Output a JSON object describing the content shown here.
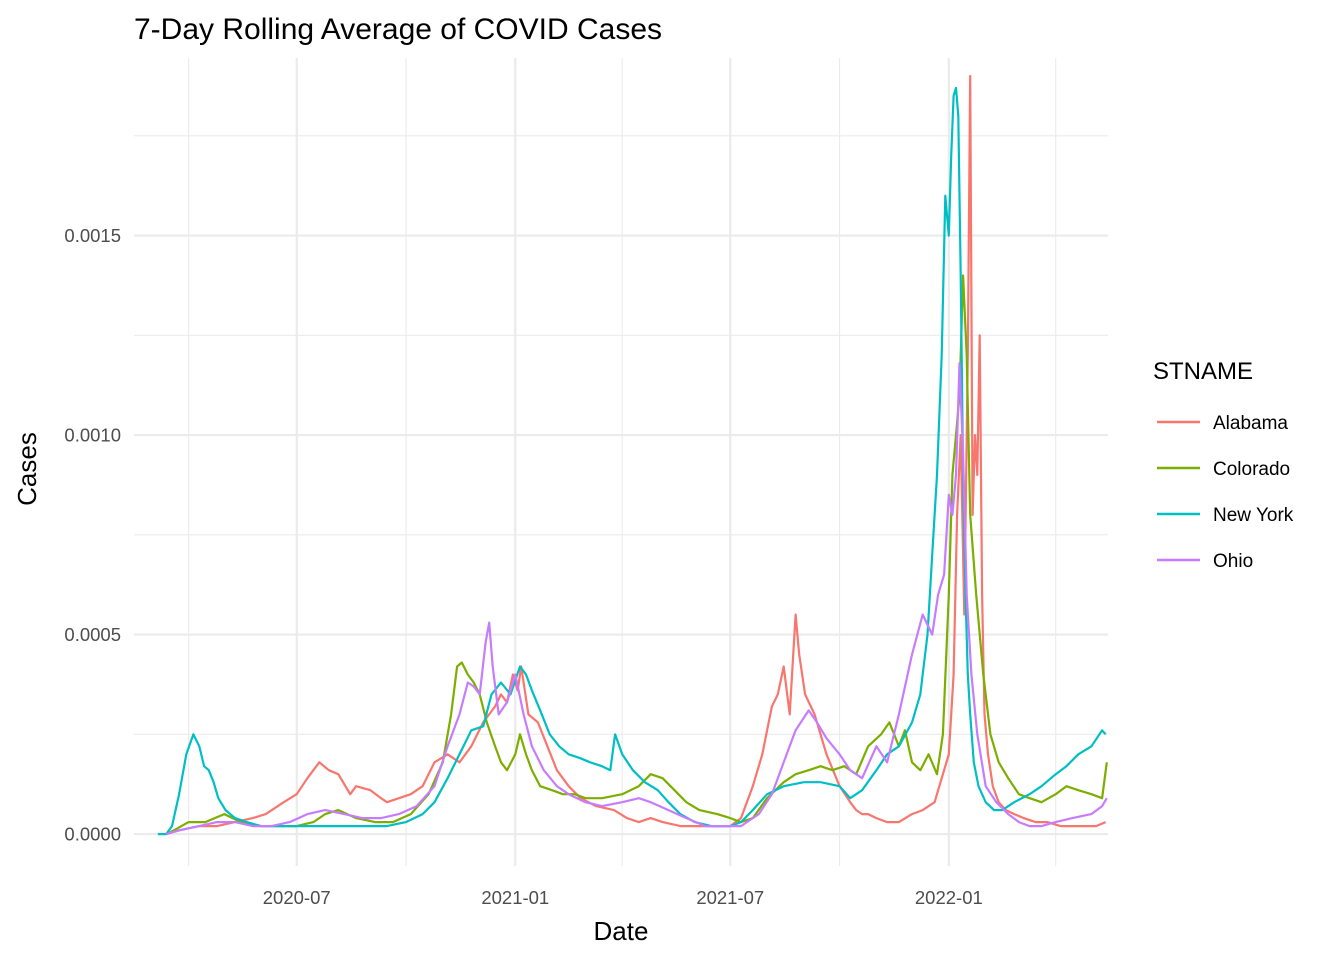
{
  "chart_data": {
    "type": "line",
    "title": "7-Day Rolling Average of COVID Cases",
    "xlabel": "Date",
    "ylabel": "Cases",
    "x_axis": {
      "type": "date",
      "range": [
        "2020-02-15",
        "2022-05-15"
      ],
      "ticks": [
        "2020-07-01",
        "2021-01-01",
        "2021-07-01",
        "2022-01-01"
      ],
      "tick_labels": [
        "2020-07",
        "2021-01",
        "2021-07",
        "2022-01"
      ],
      "minor_ticks": [
        "2020-04-01",
        "2020-10-01",
        "2021-04-01",
        "2021-10-01",
        "2022-04-01"
      ]
    },
    "y_axis": {
      "range": [
        -8e-05,
        0.001945
      ],
      "ticks": [
        0,
        0.0005,
        0.001,
        0.0015
      ],
      "tick_labels": [
        "0.0000",
        "0.0005",
        "0.0010",
        "0.0015"
      ],
      "minor_ticks": [
        0.00025,
        0.00075,
        0.00125,
        0.00175
      ]
    },
    "grid": true,
    "legend": {
      "title": "STNAME",
      "position": "right"
    },
    "series": [
      {
        "name": "Alabama",
        "color": "#F8766D",
        "x": [
          "2020-03-13",
          "2020-03-25",
          "2020-04-10",
          "2020-04-25",
          "2020-05-10",
          "2020-05-25",
          "2020-06-05",
          "2020-06-20",
          "2020-07-01",
          "2020-07-10",
          "2020-07-20",
          "2020-07-28",
          "2020-08-05",
          "2020-08-15",
          "2020-08-20",
          "2020-09-01",
          "2020-09-10",
          "2020-09-15",
          "2020-09-25",
          "2020-10-05",
          "2020-10-15",
          "2020-10-25",
          "2020-11-05",
          "2020-11-15",
          "2020-11-25",
          "2020-12-05",
          "2020-12-15",
          "2020-12-20",
          "2020-12-25",
          "2020-12-30",
          "2021-01-03",
          "2021-01-06",
          "2021-01-12",
          "2021-01-20",
          "2021-01-28",
          "2021-02-05",
          "2021-02-15",
          "2021-02-25",
          "2021-03-10",
          "2021-03-25",
          "2021-04-05",
          "2021-04-15",
          "2021-04-25",
          "2021-05-05",
          "2021-05-20",
          "2021-06-05",
          "2021-06-20",
          "2021-07-01",
          "2021-07-10",
          "2021-07-20",
          "2021-07-28",
          "2021-08-05",
          "2021-08-10",
          "2021-08-15",
          "2021-08-20",
          "2021-08-25",
          "2021-08-28",
          "2021-09-02",
          "2021-09-10",
          "2021-09-20",
          "2021-10-01",
          "2021-10-10",
          "2021-10-15",
          "2021-10-20",
          "2021-10-25",
          "2021-11-01",
          "2021-11-10",
          "2021-11-20",
          "2021-12-01",
          "2021-12-10",
          "2021-12-20",
          "2021-12-27",
          "2022-01-01",
          "2022-01-05",
          "2022-01-08",
          "2022-01-11",
          "2022-01-14",
          "2022-01-17",
          "2022-01-19",
          "2022-01-21",
          "2022-01-23",
          "2022-01-25",
          "2022-01-27",
          "2022-01-29",
          "2022-01-31",
          "2022-02-03",
          "2022-02-07",
          "2022-02-12",
          "2022-02-18",
          "2022-02-25",
          "2022-03-05",
          "2022-03-15",
          "2022-03-25",
          "2022-04-05",
          "2022-04-20",
          "2022-05-05",
          "2022-05-13"
        ],
        "y": [
          0,
          1e-05,
          2e-05,
          2e-05,
          3e-05,
          4e-05,
          5e-05,
          8e-05,
          0.0001,
          0.00014,
          0.00018,
          0.00016,
          0.00015,
          0.0001,
          0.00012,
          0.00011,
          9e-05,
          8e-05,
          9e-05,
          0.0001,
          0.00012,
          0.00018,
          0.0002,
          0.00018,
          0.00022,
          0.00028,
          0.00032,
          0.00035,
          0.00033,
          0.0004,
          0.00036,
          0.00042,
          0.0003,
          0.00028,
          0.00022,
          0.00016,
          0.00012,
          9e-05,
          7e-05,
          6e-05,
          4e-05,
          3e-05,
          4e-05,
          3e-05,
          2e-05,
          2e-05,
          2e-05,
          2e-05,
          4e-05,
          0.00012,
          0.0002,
          0.00032,
          0.00035,
          0.00042,
          0.0003,
          0.00055,
          0.00045,
          0.00035,
          0.0003,
          0.0002,
          0.00012,
          8e-05,
          6e-05,
          5e-05,
          5e-05,
          4e-05,
          3e-05,
          3e-05,
          5e-05,
          6e-05,
          8e-05,
          0.00015,
          0.0002,
          0.0004,
          0.0008,
          0.001,
          0.00055,
          0.0012,
          0.0019,
          0.0008,
          0.001,
          0.0009,
          0.00125,
          0.0006,
          0.0003,
          0.0002,
          0.00012,
          8e-05,
          6e-05,
          5e-05,
          4e-05,
          3e-05,
          3e-05,
          2e-05,
          2e-05,
          2e-05,
          3e-05
        ]
      },
      {
        "name": "Colorado",
        "color": "#7CAE00",
        "x": [
          "2020-03-13",
          "2020-03-20",
          "2020-04-01",
          "2020-04-15",
          "2020-05-01",
          "2020-05-15",
          "2020-06-01",
          "2020-06-15",
          "2020-07-01",
          "2020-07-15",
          "2020-07-25",
          "2020-08-05",
          "2020-08-20",
          "2020-09-05",
          "2020-09-20",
          "2020-10-05",
          "2020-10-20",
          "2020-11-01",
          "2020-11-08",
          "2020-11-13",
          "2020-11-17",
          "2020-11-22",
          "2020-11-27",
          "2020-12-02",
          "2020-12-08",
          "2020-12-15",
          "2020-12-20",
          "2020-12-25",
          "2021-01-01",
          "2021-01-05",
          "2021-01-10",
          "2021-01-15",
          "2021-01-22",
          "2021-02-01",
          "2021-02-10",
          "2021-02-20",
          "2021-03-01",
          "2021-03-15",
          "2021-04-01",
          "2021-04-15",
          "2021-04-25",
          "2021-05-05",
          "2021-05-15",
          "2021-05-25",
          "2021-06-05",
          "2021-06-20",
          "2021-07-01",
          "2021-07-10",
          "2021-07-20",
          "2021-08-01",
          "2021-08-15",
          "2021-08-25",
          "2021-09-05",
          "2021-09-15",
          "2021-09-25",
          "2021-10-05",
          "2021-10-15",
          "2021-10-25",
          "2021-11-05",
          "2021-11-12",
          "2021-11-20",
          "2021-11-25",
          "2021-12-01",
          "2021-12-08",
          "2021-12-15",
          "2021-12-22",
          "2021-12-27",
          "2022-01-01",
          "2022-01-04",
          "2022-01-07",
          "2022-01-10",
          "2022-01-13",
          "2022-01-16",
          "2022-01-19",
          "2022-01-24",
          "2022-01-30",
          "2022-02-05",
          "2022-02-12",
          "2022-02-20",
          "2022-03-01",
          "2022-03-10",
          "2022-03-20",
          "2022-04-01",
          "2022-04-10",
          "2022-04-20",
          "2022-05-01",
          "2022-05-10",
          "2022-05-14"
        ],
        "y": [
          0,
          1e-05,
          3e-05,
          3e-05,
          5e-05,
          3e-05,
          2e-05,
          2e-05,
          2e-05,
          3e-05,
          5e-05,
          6e-05,
          4e-05,
          3e-05,
          3e-05,
          5e-05,
          0.0001,
          0.00018,
          0.0003,
          0.00042,
          0.00043,
          0.0004,
          0.00038,
          0.00035,
          0.00028,
          0.00022,
          0.00018,
          0.00016,
          0.0002,
          0.00025,
          0.0002,
          0.00016,
          0.00012,
          0.00011,
          0.0001,
          0.0001,
          9e-05,
          9e-05,
          0.0001,
          0.00012,
          0.00015,
          0.00014,
          0.00011,
          8e-05,
          6e-05,
          5e-05,
          4e-05,
          3e-05,
          4e-05,
          9e-05,
          0.00013,
          0.00015,
          0.00016,
          0.00017,
          0.00016,
          0.00017,
          0.00015,
          0.00022,
          0.00025,
          0.00028,
          0.00022,
          0.00026,
          0.00018,
          0.00016,
          0.0002,
          0.00015,
          0.00025,
          0.0006,
          0.0009,
          0.001,
          0.0011,
          0.0014,
          0.0012,
          0.0008,
          0.0006,
          0.0004,
          0.00025,
          0.00018,
          0.00014,
          0.0001,
          9e-05,
          8e-05,
          0.0001,
          0.00012,
          0.00011,
          0.0001,
          9e-05,
          0.00018
        ]
      },
      {
        "name": "New York",
        "color": "#00BFC4",
        "x": [
          "2020-03-06",
          "2020-03-13",
          "2020-03-18",
          "2020-03-24",
          "2020-03-30",
          "2020-04-05",
          "2020-04-10",
          "2020-04-14",
          "2020-04-18",
          "2020-04-22",
          "2020-04-26",
          "2020-05-02",
          "2020-05-10",
          "2020-05-20",
          "2020-06-01",
          "2020-06-15",
          "2020-07-01",
          "2020-07-15",
          "2020-08-01",
          "2020-08-15",
          "2020-09-01",
          "2020-09-15",
          "2020-10-01",
          "2020-10-15",
          "2020-10-25",
          "2020-11-05",
          "2020-11-15",
          "2020-11-25",
          "2020-12-05",
          "2020-12-12",
          "2020-12-20",
          "2020-12-28",
          "2021-01-05",
          "2021-01-10",
          "2021-01-15",
          "2021-01-22",
          "2021-01-30",
          "2021-02-07",
          "2021-02-15",
          "2021-02-25",
          "2021-03-05",
          "2021-03-15",
          "2021-03-22",
          "2021-03-26",
          "2021-04-01",
          "2021-04-10",
          "2021-04-20",
          "2021-05-01",
          "2021-05-10",
          "2021-05-20",
          "2021-06-01",
          "2021-06-15",
          "2021-07-01",
          "2021-07-10",
          "2021-07-20",
          "2021-08-01",
          "2021-08-15",
          "2021-09-01",
          "2021-09-15",
          "2021-10-01",
          "2021-10-10",
          "2021-10-20",
          "2021-11-01",
          "2021-11-10",
          "2021-11-20",
          "2021-12-01",
          "2021-12-08",
          "2021-12-14",
          "2021-12-18",
          "2021-12-22",
          "2021-12-26",
          "2021-12-29",
          "2022-01-01",
          "2022-01-03",
          "2022-01-05",
          "2022-01-07",
          "2022-01-09",
          "2022-01-11",
          "2022-01-13",
          "2022-01-15",
          "2022-01-17",
          "2022-01-19",
          "2022-01-22",
          "2022-01-26",
          "2022-02-01",
          "2022-02-08",
          "2022-02-15",
          "2022-02-25",
          "2022-03-10",
          "2022-03-20",
          "2022-04-01",
          "2022-04-10",
          "2022-04-20",
          "2022-05-01",
          "2022-05-10",
          "2022-05-13"
        ],
        "y": [
          0,
          0,
          2e-05,
          0.0001,
          0.0002,
          0.00025,
          0.00022,
          0.00017,
          0.00016,
          0.00013,
          9e-05,
          6e-05,
          4e-05,
          3e-05,
          2e-05,
          2e-05,
          2e-05,
          2e-05,
          2e-05,
          2e-05,
          2e-05,
          2e-05,
          3e-05,
          5e-05,
          8e-05,
          0.00014,
          0.0002,
          0.00026,
          0.00027,
          0.00035,
          0.00038,
          0.00035,
          0.00042,
          0.0004,
          0.00036,
          0.00031,
          0.00025,
          0.00022,
          0.0002,
          0.00019,
          0.00018,
          0.00017,
          0.00016,
          0.00025,
          0.0002,
          0.00016,
          0.00013,
          0.00011,
          8e-05,
          5e-05,
          3e-05,
          2e-05,
          2e-05,
          3e-05,
          6e-05,
          0.0001,
          0.00012,
          0.00013,
          0.00013,
          0.00012,
          9e-05,
          0.00011,
          0.00016,
          0.0002,
          0.00022,
          0.00028,
          0.00035,
          0.0005,
          0.0007,
          0.0009,
          0.0012,
          0.0016,
          0.0015,
          0.0017,
          0.00185,
          0.00187,
          0.0018,
          0.0014,
          0.0009,
          0.0006,
          0.0004,
          0.0003,
          0.00018,
          0.00012,
          8e-05,
          6e-05,
          6e-05,
          8e-05,
          0.0001,
          0.00012,
          0.00015,
          0.00017,
          0.0002,
          0.00022,
          0.00026,
          0.00025
        ]
      },
      {
        "name": "Ohio",
        "color": "#C77CFF",
        "x": [
          "2020-03-13",
          "2020-03-25",
          "2020-04-10",
          "2020-04-25",
          "2020-05-10",
          "2020-05-25",
          "2020-06-10",
          "2020-06-25",
          "2020-07-10",
          "2020-07-25",
          "2020-08-10",
          "2020-08-25",
          "2020-09-10",
          "2020-09-25",
          "2020-10-10",
          "2020-10-25",
          "2020-11-05",
          "2020-11-15",
          "2020-11-22",
          "2020-11-27",
          "2020-12-02",
          "2020-12-07",
          "2020-12-10",
          "2020-12-13",
          "2020-12-18",
          "2020-12-25",
          "2021-01-01",
          "2021-01-08",
          "2021-01-15",
          "2021-01-25",
          "2021-02-05",
          "2021-02-15",
          "2021-03-01",
          "2021-03-15",
          "2021-04-01",
          "2021-04-15",
          "2021-04-25",
          "2021-05-10",
          "2021-05-25",
          "2021-06-10",
          "2021-06-25",
          "2021-07-10",
          "2021-07-25",
          "2021-08-05",
          "2021-08-15",
          "2021-08-25",
          "2021-09-05",
          "2021-09-12",
          "2021-09-20",
          "2021-10-01",
          "2021-10-10",
          "2021-10-20",
          "2021-11-01",
          "2021-11-10",
          "2021-11-20",
          "2021-12-01",
          "2021-12-10",
          "2021-12-18",
          "2021-12-23",
          "2021-12-28",
          "2022-01-01",
          "2022-01-04",
          "2022-01-07",
          "2022-01-10",
          "2022-01-13",
          "2022-01-16",
          "2022-01-20",
          "2022-01-25",
          "2022-02-01",
          "2022-02-10",
          "2022-02-20",
          "2022-03-01",
          "2022-03-10",
          "2022-03-20",
          "2022-04-01",
          "2022-04-15",
          "2022-05-01",
          "2022-05-10",
          "2022-05-14"
        ],
        "y": [
          0,
          1e-05,
          2e-05,
          3e-05,
          3e-05,
          2e-05,
          2e-05,
          3e-05,
          5e-05,
          6e-05,
          5e-05,
          4e-05,
          4e-05,
          5e-05,
          7e-05,
          0.00012,
          0.00022,
          0.0003,
          0.00038,
          0.00037,
          0.00035,
          0.00048,
          0.00053,
          0.00042,
          0.0003,
          0.00033,
          0.0004,
          0.0003,
          0.00022,
          0.00016,
          0.00012,
          0.0001,
          8e-05,
          7e-05,
          8e-05,
          9e-05,
          8e-05,
          6e-05,
          4e-05,
          2e-05,
          2e-05,
          2e-05,
          5e-05,
          0.0001,
          0.00018,
          0.00026,
          0.00031,
          0.00028,
          0.00024,
          0.0002,
          0.00016,
          0.00014,
          0.00022,
          0.00018,
          0.0003,
          0.00045,
          0.00055,
          0.0005,
          0.0006,
          0.00065,
          0.00085,
          0.0008,
          0.0009,
          0.00118,
          0.00095,
          0.0006,
          0.0004,
          0.00025,
          0.00012,
          8e-05,
          5e-05,
          3e-05,
          2e-05,
          2e-05,
          3e-05,
          4e-05,
          5e-05,
          7e-05,
          9e-05
        ]
      }
    ]
  }
}
